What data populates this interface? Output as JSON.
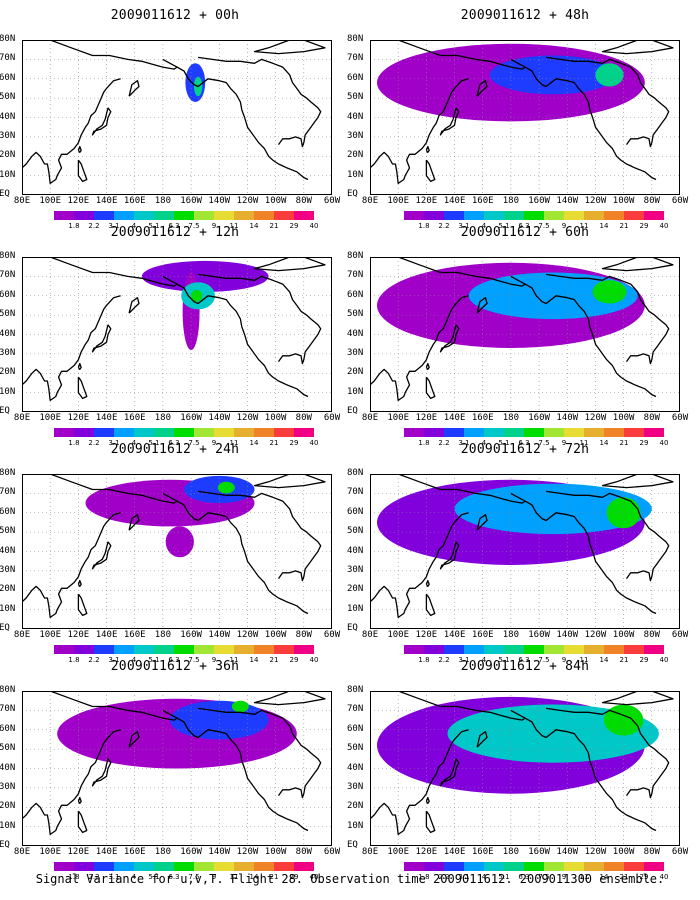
{
  "caption": "Signal Variance for u,v,T. Flight 28. Observation time 2009011612. 2009011300 ensemble.",
  "colorbar": {
    "labels": [
      "1.8",
      "2.2",
      "3.1",
      "4",
      "5.1",
      "6.3",
      "7.5",
      "9",
      "11",
      "14",
      "21",
      "29",
      "40"
    ],
    "colors": [
      "#a000c8",
      "#8200dc",
      "#1e3cff",
      "#00a0ff",
      "#00c8c8",
      "#00d28c",
      "#00dc00",
      "#a0e632",
      "#e6dc32",
      "#e6af2d",
      "#f08228",
      "#fa3c3c",
      "#f00082"
    ]
  },
  "axes": {
    "lat_labels": [
      "80N",
      "70N",
      "60N",
      "50N",
      "40N",
      "30N",
      "20N",
      "10N",
      "EQ"
    ],
    "lon_labels": [
      "80E",
      "100E",
      "120E",
      "140E",
      "160E",
      "180",
      "160W",
      "140W",
      "120W",
      "100W",
      "80W",
      "60W"
    ]
  },
  "chart_data": [
    {
      "type": "heatmap",
      "title": "2009011612 + 00h",
      "field": "signal variance",
      "xlim": [
        "80E",
        "60W"
      ],
      "ylim": [
        "EQ",
        "80N"
      ],
      "regions": [
        {
          "lon": -157,
          "lat": 58,
          "rlon": 7,
          "rlat": 10,
          "level": 2
        },
        {
          "lon": -155,
          "lat": 56,
          "rlon": 3,
          "rlat": 5,
          "level": 5
        }
      ]
    },
    {
      "type": "heatmap",
      "title": "2009011612 + 12h",
      "field": "signal variance",
      "xlim": [
        "80E",
        "60W"
      ],
      "ylim": [
        "EQ",
        "80N"
      ],
      "regions": [
        {
          "lon": -150,
          "lat": 70,
          "rlon": 45,
          "rlat": 8,
          "level": 1
        },
        {
          "lon": -160,
          "lat": 52,
          "rlon": 6,
          "rlat": 20,
          "level": 0
        },
        {
          "lon": -155,
          "lat": 60,
          "rlon": 12,
          "rlat": 7,
          "level": 4
        },
        {
          "lon": -156,
          "lat": 60,
          "rlon": 4,
          "rlat": 3,
          "level": 6
        }
      ]
    },
    {
      "type": "heatmap",
      "title": "2009011612 + 24h",
      "field": "signal variance",
      "xlim": [
        "80E",
        "60W"
      ],
      "ylim": [
        "EQ",
        "80N"
      ],
      "regions": [
        {
          "lon": -175,
          "lat": 65,
          "rlon": 60,
          "rlat": 12,
          "level": 0
        },
        {
          "lon": -140,
          "lat": 72,
          "rlon": 25,
          "rlat": 7,
          "level": 2
        },
        {
          "lon": -135,
          "lat": 73,
          "rlon": 6,
          "rlat": 3,
          "level": 6
        },
        {
          "lon": -168,
          "lat": 45,
          "rlon": 10,
          "rlat": 8,
          "level": 0
        }
      ]
    },
    {
      "type": "heatmap",
      "title": "2009011612 + 36h",
      "field": "signal variance",
      "xlim": [
        "80E",
        "60W"
      ],
      "ylim": [
        "EQ",
        "80N"
      ],
      "regions": [
        {
          "lon": -170,
          "lat": 58,
          "rlon": 85,
          "rlat": 18,
          "level": 0
        },
        {
          "lon": -140,
          "lat": 65,
          "rlon": 35,
          "rlat": 10,
          "level": 2
        },
        {
          "lon": -125,
          "lat": 72,
          "rlon": 6,
          "rlat": 3,
          "level": 6
        }
      ]
    },
    {
      "type": "heatmap",
      "title": "2009011612 + 48h",
      "field": "signal variance",
      "xlim": [
        "80E",
        "60W"
      ],
      "ylim": [
        "EQ",
        "80N"
      ],
      "regions": [
        {
          "lon": -180,
          "lat": 58,
          "rlon": 95,
          "rlat": 20,
          "level": 0
        },
        {
          "lon": -150,
          "lat": 62,
          "rlon": 45,
          "rlat": 10,
          "level": 2
        },
        {
          "lon": -110,
          "lat": 62,
          "rlon": 10,
          "rlat": 6,
          "level": 5
        }
      ]
    },
    {
      "type": "heatmap",
      "title": "2009011612 + 60h",
      "field": "signal variance",
      "xlim": [
        "80E",
        "60W"
      ],
      "ylim": [
        "EQ",
        "80N"
      ],
      "regions": [
        {
          "lon": -180,
          "lat": 55,
          "rlon": 95,
          "rlat": 22,
          "level": 0
        },
        {
          "lon": -150,
          "lat": 60,
          "rlon": 60,
          "rlat": 12,
          "level": 3
        },
        {
          "lon": -110,
          "lat": 62,
          "rlon": 12,
          "rlat": 6,
          "level": 6
        }
      ]
    },
    {
      "type": "heatmap",
      "title": "2009011612 + 72h",
      "field": "signal variance",
      "xlim": [
        "80E",
        "60W"
      ],
      "ylim": [
        "EQ",
        "80N"
      ],
      "regions": [
        {
          "lon": -180,
          "lat": 55,
          "rlon": 95,
          "rlat": 22,
          "level": 1
        },
        {
          "lon": -150,
          "lat": 62,
          "rlon": 70,
          "rlat": 13,
          "level": 3
        },
        {
          "lon": -100,
          "lat": 60,
          "rlon": 12,
          "rlat": 8,
          "level": 6
        }
      ]
    },
    {
      "type": "heatmap",
      "title": "2009011612 + 84h",
      "field": "signal variance",
      "xlim": [
        "80E",
        "60W"
      ],
      "ylim": [
        "EQ",
        "80N"
      ],
      "regions": [
        {
          "lon": -180,
          "lat": 52,
          "rlon": 95,
          "rlat": 25,
          "level": 1
        },
        {
          "lon": -150,
          "lat": 58,
          "rlon": 75,
          "rlat": 15,
          "level": 4
        },
        {
          "lon": -100,
          "lat": 65,
          "rlon": 14,
          "rlat": 8,
          "level": 6
        }
      ]
    }
  ]
}
